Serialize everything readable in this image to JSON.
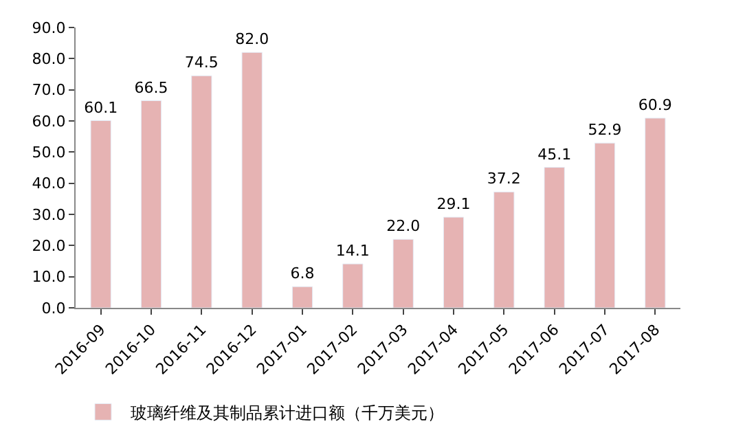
{
  "chart_data": {
    "type": "bar",
    "categories": [
      "2016-09",
      "2016-10",
      "2016-11",
      "2016-12",
      "2017-01",
      "2017-02",
      "2017-03",
      "2017-04",
      "2017-05",
      "2017-06",
      "2017-07",
      "2017-08"
    ],
    "series": [
      {
        "name": "玻璃纤维及其制品累计进口额（千万美元）",
        "color": "#e6b3b3",
        "values": [
          60.1,
          66.5,
          74.5,
          82.0,
          6.8,
          14.1,
          22.0,
          29.1,
          37.2,
          45.1,
          52.9,
          60.9
        ]
      }
    ],
    "value_labels": [
      "60.1",
      "66.5",
      "74.5",
      "82.0",
      "6.8",
      "14.1",
      "22.0",
      "29.1",
      "37.2",
      "45.1",
      "52.9",
      "60.9"
    ],
    "ylim": [
      0,
      90
    ],
    "yticks": [
      {
        "value": 0,
        "label": "0.0"
      },
      {
        "value": 10,
        "label": "10.0"
      },
      {
        "value": 20,
        "label": "20.0"
      },
      {
        "value": 30,
        "label": "30.0"
      },
      {
        "value": 40,
        "label": "40.0"
      },
      {
        "value": 50,
        "label": "50.0"
      },
      {
        "value": 60,
        "label": "60.0"
      },
      {
        "value": 70,
        "label": "70.0"
      },
      {
        "value": 80,
        "label": "80.0"
      },
      {
        "value": 90,
        "label": "90.0"
      }
    ],
    "legend": "bottom left"
  }
}
